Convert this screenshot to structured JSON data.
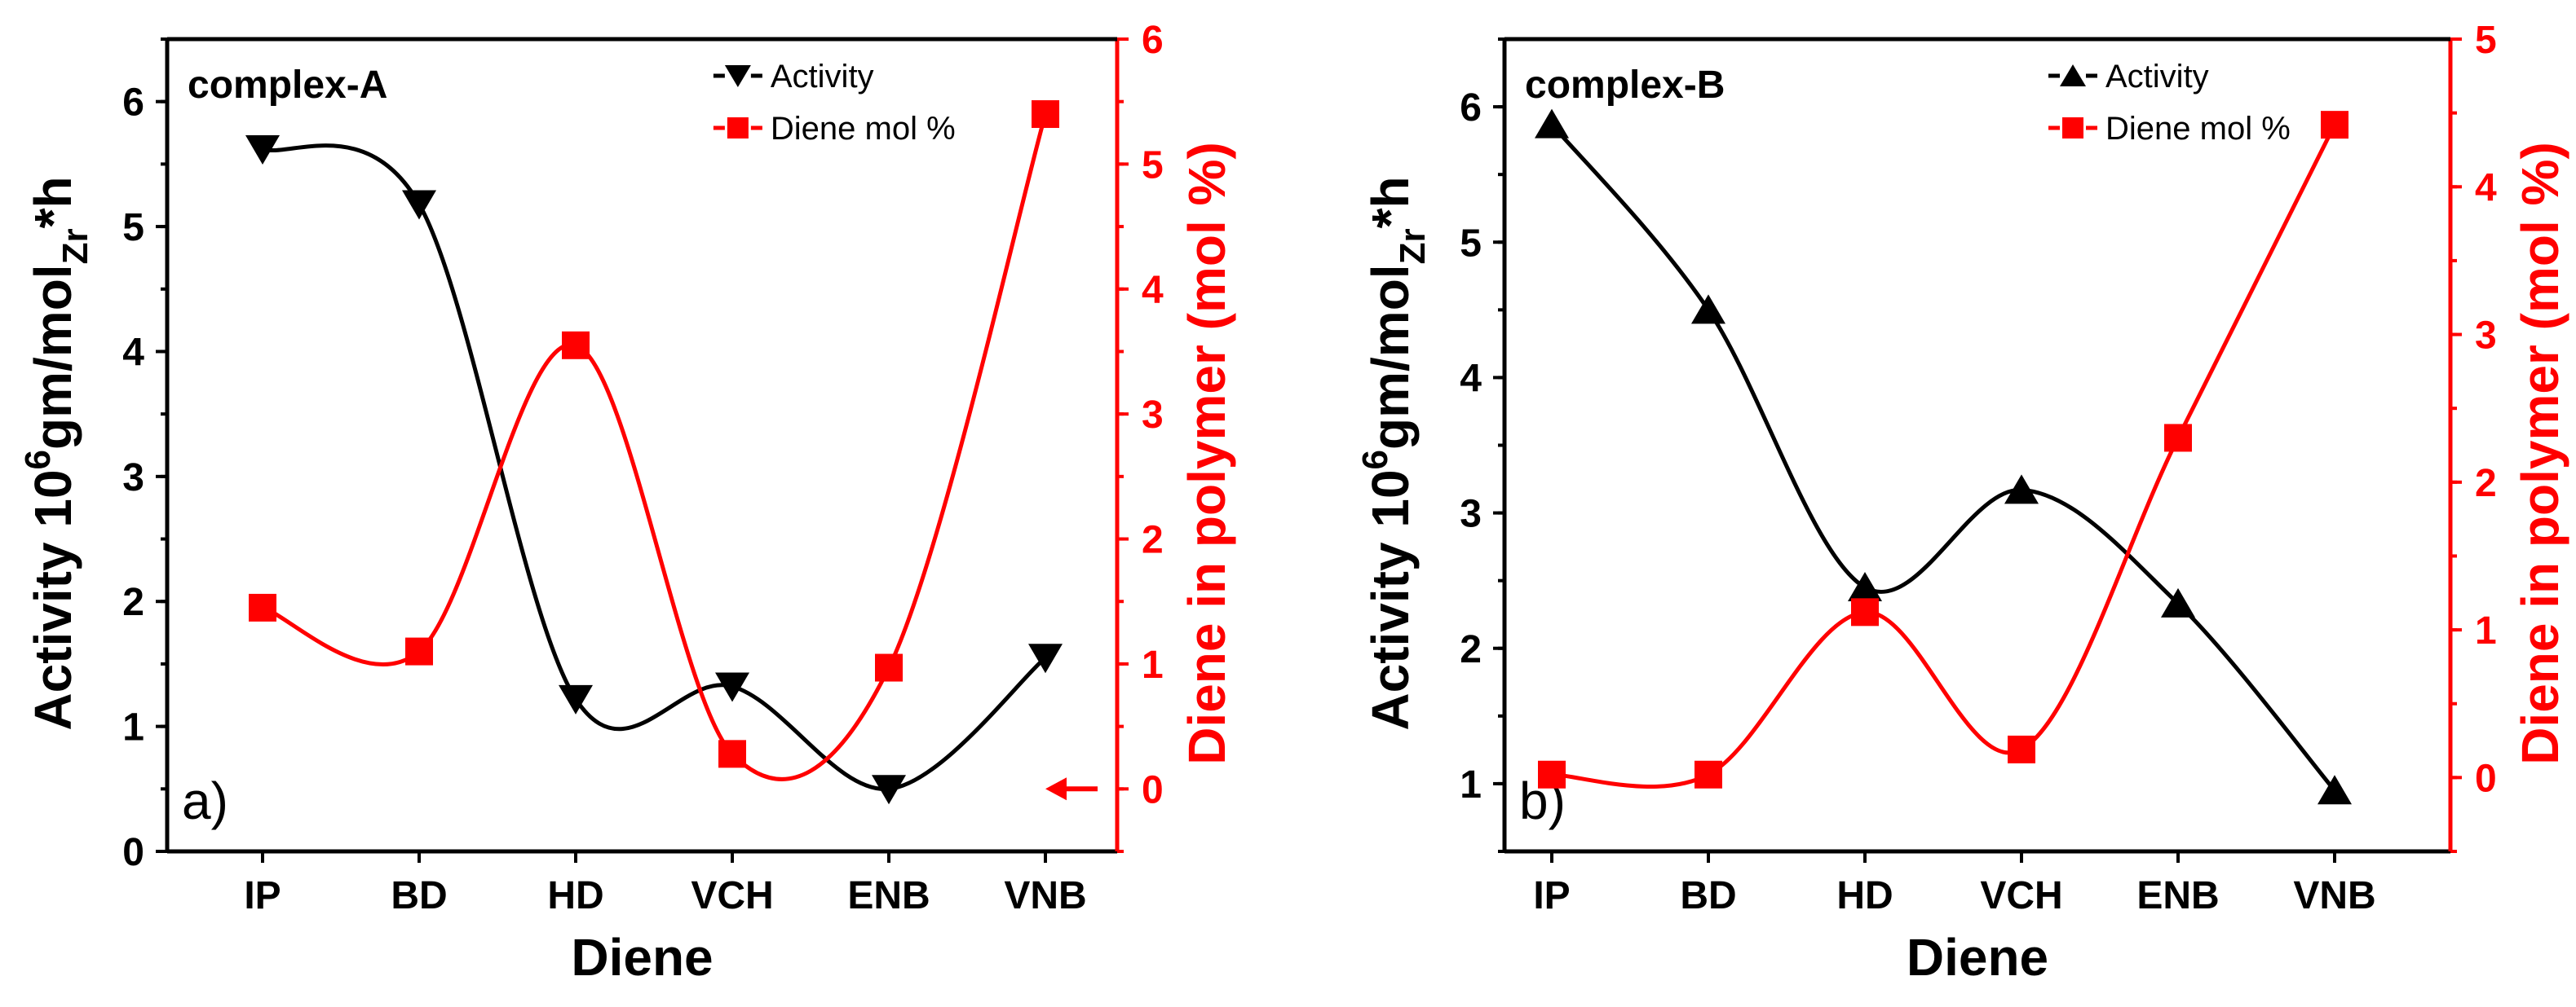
{
  "chart_data": [
    {
      "type": "line",
      "panel_label": "a)",
      "title": "complex-A",
      "xlabel": "Diene",
      "ylabel_left": "Activity 10^6gm/molZr*h",
      "ylabel_left_parts": {
        "prefix": "Activity 10",
        "sup": "6",
        "mid": "gm/mol",
        "sub": "Zr",
        "suffix": "*h"
      },
      "ylabel_right": "Diene in polymer (mol %)",
      "categories": [
        "IP",
        "BD",
        "HD",
        "VCH",
        "ENB",
        "VNB"
      ],
      "ylim_left": [
        0,
        6.5
      ],
      "ylim_right": [
        -0.5,
        6
      ],
      "yticks_left": [
        "0",
        "1",
        "2",
        "3",
        "4",
        "5",
        "6"
      ],
      "yticks_right": [
        "0",
        "1",
        "2",
        "3",
        "4",
        "5",
        "6"
      ],
      "series": [
        {
          "name": "Activity",
          "axis": "left",
          "marker": "triangle-down",
          "color": "#000000",
          "values": [
            5.62,
            5.18,
            1.22,
            1.32,
            0.5,
            1.55
          ]
        },
        {
          "name": "Diene mol %",
          "axis": "right",
          "marker": "square",
          "color": "#ff0000",
          "values": [
            1.45,
            1.1,
            3.55,
            0.28,
            0.97,
            5.4
          ]
        }
      ],
      "annotation": "red arrow pointing to 0 on right axis",
      "legend_position": "top-right"
    },
    {
      "type": "line",
      "panel_label": "b)",
      "title": "complex-B",
      "xlabel": "Diene",
      "ylabel_left": "Activity 10^6gm/molZr*h",
      "ylabel_left_parts": {
        "prefix": "Activity 10",
        "sup": "6",
        "mid": "gm/mol",
        "sub": "Zr",
        "suffix": "*h"
      },
      "ylabel_right": "Diene in polymer (mol %)",
      "categories": [
        "IP",
        "BD",
        "HD",
        "VCH",
        "ENB",
        "VNB"
      ],
      "ylim_left": [
        0.5,
        6.5
      ],
      "ylim_right": [
        -0.5,
        5
      ],
      "yticks_left": [
        "1",
        "2",
        "3",
        "4",
        "5",
        "6"
      ],
      "yticks_right": [
        "0",
        "1",
        "2",
        "3",
        "4",
        "5"
      ],
      "series": [
        {
          "name": "Activity",
          "axis": "left",
          "marker": "triangle-up",
          "color": "#000000",
          "values": [
            5.87,
            4.5,
            2.45,
            3.17,
            2.33,
            0.95
          ]
        },
        {
          "name": "Diene mol %",
          "axis": "right",
          "marker": "square",
          "color": "#ff0000",
          "values": [
            0.02,
            0.02,
            1.12,
            0.19,
            2.3,
            4.42
          ]
        }
      ],
      "legend_position": "top-right"
    }
  ]
}
